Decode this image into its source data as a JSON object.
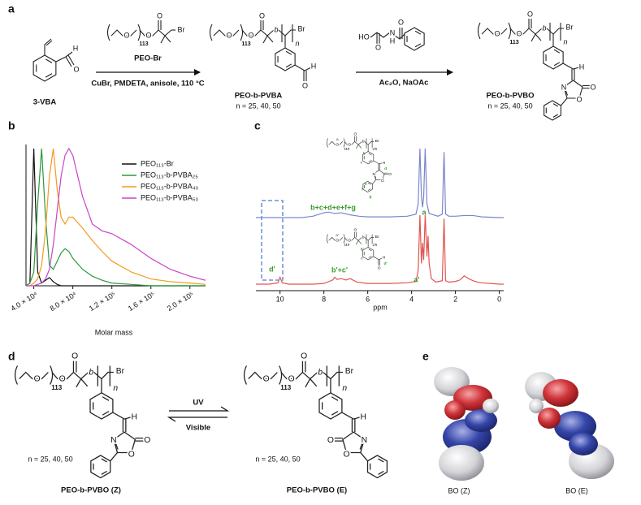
{
  "panel_labels": [
    "a",
    "b",
    "c",
    "d",
    "e"
  ],
  "scheme_a": {
    "vba": {
      "atoms": [
        "H",
        "O"
      ],
      "label": "3-VBA"
    },
    "peo_br": {
      "atoms": [
        "O",
        "113",
        "O",
        "O",
        "Br"
      ],
      "label": "PEO-Br"
    },
    "conditions_1": "CuBr, PMDETA, anisole, 110 °C",
    "pvba": {
      "atoms": [
        "O",
        "113",
        "O",
        "O",
        "b",
        "Br",
        "n",
        "H",
        "O"
      ],
      "label": "PEO-b-PVBA",
      "n": "n = 25, 40, 50"
    },
    "hippuric": {
      "atoms": [
        "HO",
        "O",
        "N",
        "H",
        "O"
      ]
    },
    "conditions_2": "Ac₂O, NaOAc",
    "pvbo": {
      "atoms": [
        "O",
        "113",
        "O",
        "O",
        "b",
        "Br",
        "n",
        "H",
        "N",
        "O",
        "O"
      ],
      "label": "PEO-b-PVBO",
      "n": "n = 25, 40, 50"
    }
  },
  "chart_data": [
    {
      "type": "line",
      "x_label": "Molar mass",
      "xlim": [
        32000,
        216000
      ],
      "xticks": [
        {
          "value": 40000,
          "label": "4.0 × 10⁴"
        },
        {
          "value": 80000,
          "label": "8.0 × 10⁴"
        },
        {
          "value": 120000,
          "label": "1.2 × 10⁵"
        },
        {
          "value": 160000,
          "label": "1.6 × 10⁵"
        },
        {
          "value": 200000,
          "label": "2.0 × 10⁵"
        }
      ],
      "ylim": [
        0,
        1
      ],
      "legend": "upper right",
      "x": [
        32000,
        36000,
        40000,
        44000,
        48000,
        52000,
        56000,
        60000,
        64000,
        68000,
        72000,
        76000,
        80000,
        90000,
        100000,
        110000,
        120000,
        140000,
        160000,
        180000,
        200000,
        216000
      ],
      "series": [
        {
          "name": "PEO₁₁₃-Br",
          "color": "#111111",
          "values": [
            0,
            0.02,
            1.0,
            0.1,
            0.02,
            0.04,
            0.06,
            0.03,
            0.01,
            0,
            0,
            0,
            0,
            0,
            0,
            0,
            0,
            0,
            0,
            0,
            0,
            0
          ]
        },
        {
          "name": "PEO₁₁₃-b-PVBA₂₅",
          "color": "#2a9a3a",
          "values": [
            0,
            0.02,
            0.1,
            0.6,
            1.0,
            0.5,
            0.15,
            0.12,
            0.18,
            0.24,
            0.27,
            0.25,
            0.2,
            0.12,
            0.07,
            0.04,
            0.02,
            0.01,
            0,
            0,
            0,
            0
          ]
        },
        {
          "name": "PEO₁₁₃-b-PVBA₄₀",
          "color": "#f39a1e",
          "values": [
            0,
            0,
            0.02,
            0.05,
            0.15,
            0.4,
            0.8,
            1.0,
            0.7,
            0.5,
            0.45,
            0.5,
            0.5,
            0.42,
            0.33,
            0.25,
            0.18,
            0.1,
            0.05,
            0.03,
            0.02,
            0.01
          ]
        },
        {
          "name": "PEO₁₁₃-b-PVBA₅₀",
          "color": "#c845c8",
          "values": [
            0,
            0,
            0,
            0.01,
            0.02,
            0.05,
            0.12,
            0.3,
            0.55,
            0.8,
            0.95,
            1.0,
            0.95,
            0.65,
            0.45,
            0.4,
            0.38,
            0.3,
            0.2,
            0.12,
            0.07,
            0.04
          ]
        }
      ]
    },
    {
      "type": "line",
      "x_label": "ppm",
      "xlim": [
        11.1,
        -0.2
      ],
      "xticks": [
        10,
        8,
        6,
        4,
        2,
        0
      ],
      "ylim": [
        0,
        1
      ],
      "series": [
        {
          "color": "#7b86c9",
          "x": [
            11.1,
            10,
            9,
            8.5,
            8.0,
            7.8,
            7.5,
            7.2,
            6.8,
            6.4,
            6.0,
            5.0,
            4.2,
            3.8,
            3.7,
            3.62,
            3.55,
            3.5,
            3.45,
            3.38,
            3.3,
            3.2,
            2.8,
            2.6,
            2.52,
            2.45,
            2.3,
            2.0,
            1.6,
            1.2,
            0.8,
            0,
            -0.2
          ],
          "values": [
            0,
            0,
            0,
            0.02,
            0.07,
            0.08,
            0.06,
            0.07,
            0.04,
            0.02,
            0.01,
            0.01,
            0.02,
            0.05,
            0.2,
            1.0,
            0.3,
            0.15,
            0.3,
            1.0,
            0.2,
            0.06,
            0.02,
            0.05,
            0.95,
            0.05,
            0.02,
            0.02,
            0.03,
            0.03,
            0.01,
            0,
            0
          ]
        },
        {
          "color": "#e0554f",
          "x": [
            11.1,
            10.5,
            10.1,
            10.0,
            9.9,
            9.6,
            9,
            8.5,
            8,
            7.6,
            7.5,
            7.4,
            7.2,
            7.0,
            6.8,
            6.5,
            6.0,
            5,
            4.2,
            3.8,
            3.7,
            3.62,
            3.55,
            3.5,
            3.45,
            3.38,
            3.3,
            3.25,
            3.2,
            3.1,
            2.9,
            2.6,
            2.52,
            2.45,
            2.3,
            2.0,
            1.8,
            1.6,
            1.4,
            1.2,
            1.0,
            0.8,
            0,
            -0.2
          ],
          "values": [
            0,
            0,
            0.02,
            0.1,
            0.02,
            0,
            0,
            0,
            0.01,
            0.06,
            0.1,
            0.07,
            0.08,
            0.06,
            0.08,
            0.03,
            0.01,
            0.01,
            0.02,
            0.04,
            0.2,
            1.0,
            0.3,
            0.6,
            0.35,
            1.0,
            0.4,
            0.7,
            0.3,
            0.08,
            0.03,
            0.05,
            0.95,
            0.05,
            0.03,
            0.04,
            0.06,
            0.12,
            0.08,
            0.05,
            0.03,
            0.02,
            0,
            0
          ]
        }
      ],
      "annotations": [
        "b+c+d+e+f+g",
        "a",
        "d'",
        "b'+c'",
        "a'"
      ]
    }
  ],
  "nmr_insets": {
    "pvbo": {
      "atoms": [
        "O",
        "113",
        "O",
        "O",
        "b",
        "Br",
        "25",
        "H",
        "N",
        "O",
        "O"
      ],
      "assign": [
        "a",
        "b",
        "c",
        "d",
        "e",
        "f",
        "g"
      ]
    },
    "pvba": {
      "atoms": [
        "O",
        "113",
        "O",
        "O",
        "b",
        "Br",
        "25",
        "H",
        "O"
      ],
      "assign": [
        "a'",
        "b'",
        "c'",
        "d'"
      ]
    }
  },
  "scheme_d": {
    "z": {
      "atoms": [
        "O",
        "113",
        "O",
        "O",
        "b",
        "Br",
        "n",
        "H",
        "N",
        "O",
        "O"
      ],
      "n": "n = 25, 40, 50",
      "label": "PEO-b-PVBO (Z)"
    },
    "e": {
      "atoms": [
        "O",
        "113",
        "O",
        "O",
        "b",
        "Br",
        "n",
        "H",
        "N",
        "O",
        "O"
      ],
      "n": "n = 25, 40, 50",
      "label": "PEO-b-PVBO (E)"
    },
    "forward": "UV",
    "backward": "Visible"
  },
  "models_e": {
    "labels": [
      "BO (Z)",
      "BO (E)"
    ]
  }
}
